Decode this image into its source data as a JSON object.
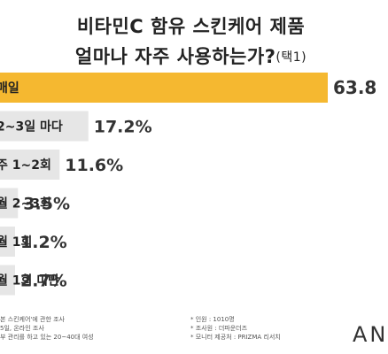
{
  "title_line1": "비타민C 함유 스킨케어 제품",
  "title_line2": "얼마나 자주 사용하는가?",
  "title_note": "(택1)",
  "colors": {
    "highlight": "#F5B830",
    "bar": "#E6E6E6",
    "text": "#222222"
  },
  "chart_data": {
    "type": "bar",
    "orientation": "horizontal",
    "categories": [
      "매일",
      "2~3일 마다",
      "주 1~2회",
      "월 2~3회",
      "월 1회",
      "월 1회 미만"
    ],
    "values": [
      63.8,
      17.2,
      11.6,
      3.5,
      1.2,
      2.7
    ],
    "value_labels": [
      "63.8",
      "17.2%",
      "11.6%",
      "3.5%",
      "1.2%",
      "2.7%"
    ],
    "title": "비타민C 함유 스킨케어 제품 얼마나 자주 사용하는가?(택1)",
    "xlabel": "",
    "ylabel": "",
    "xlim": [
      0,
      63.8
    ],
    "grid": false
  },
  "footer": {
    "left": [
      "본 스킨케어'에 관한 조사",
      "5일, 온라인 조사",
      "부 관리를 하고 있는 20~40대 여성"
    ],
    "right": [
      "*  인원 : 1010명",
      "*  조사원 : 더파운더즈",
      "*  모니터 제공처 : PRIZMA 리서치"
    ]
  },
  "brand": "AN"
}
